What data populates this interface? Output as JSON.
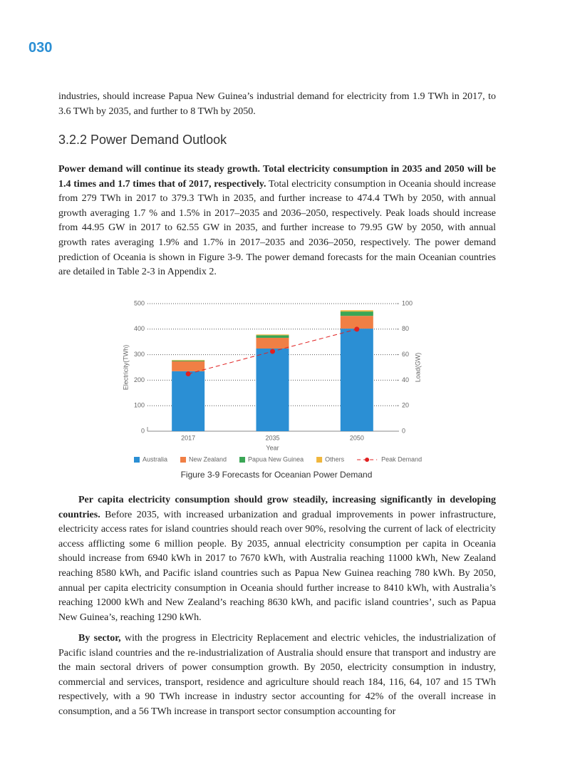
{
  "page_number": "030",
  "paragraphs": [
    {
      "text": "industries, should increase Papua New Guinea’s industrial demand for electricity from 1.9 TWh in 2017, to 3.6 TWh by 2035, and further to 8 TWh by 2050."
    },
    {
      "bold": "Power demand will continue its steady growth. Total electricity consumption in 2035 and 2050 will be 1.4 times and 1.7 times that of 2017, respectively.",
      "text": "Total electricity consumption in Oceania should increase from 279 TWh in 2017 to 379.3 TWh in 2035, and further increase to 474.4 TWh by 2050, with annual growth averaging 1.7 % and 1.5% in 2017–2035 and 2036–2050, respectively. Peak loads should increase from 44.95 GW in 2017 to 62.55 GW in 2035, and further increase to 79.95 GW by 2050, with annual growth rates averaging 1.9% and 1.7% in 2017–2035 and 2036–2050, respectively. The power demand prediction of Oceania is shown in Figure 3-9. The power demand forecasts for the main Oceanian countries are detailed in Table 2-3 in Appendix 2."
    },
    {
      "bold": "Per capita electricity consumption should grow steadily, increasing significantly in developing countries.",
      "text": "Before 2035, with increased urbanization and gradual improvements in power infrastructure, electricity access rates for island countries should reach over 90%, resolving the current of lack of electricity access afflicting some 6 million people. By 2035, annual electricity consumption per capita in Oceania should increase from 6940 kWh in 2017 to 7670 kWh, with Australia reaching 11000 kWh, New Zealand reaching 8580 kWh, and Pacific island countries such as Papua New Guinea reaching 780 kWh. By 2050, annual per capita electricity consumption in Oceania should further increase to 8410 kWh, with Australia’s reaching 12000 kWh and New Zealand’s reaching 8630 kWh, and pacific island countries’, such as Papua New Guinea’s, reaching 1290 kWh."
    },
    {
      "bold": "By sector,",
      "text": "with the progress in Electricity Replacement and electric vehicles, the industrialization of Pacific island countries and the re-industrialization of Australia should ensure that transport and industry are the main sectoral drivers of power consumption growth. By 2050, electricity consumption in industry, commercial and services, transport, residence and agriculture should reach 184, 116, 64, 107 and 15 TWh respectively, with a 90 TWh increase in industry sector accounting for 42% of the overall increase in consumption, and a 56 TWh increase in transport sector consumption accounting for"
    }
  ],
  "heading": "3.2.2 Power Demand Outlook",
  "chart_data": {
    "type": "bar",
    "stacked": true,
    "grid": true,
    "caption": "Figure 3-9 Forecasts for Oceanian Power Demand",
    "x_label": "Year",
    "y_label": "Electricity(TWh)",
    "y2_label": "Load(GW)",
    "categories": [
      "2017",
      "2035",
      "2050"
    ],
    "series": [
      {
        "name": "Australia",
        "color": "#2b8fd4",
        "values": [
          235,
          324,
          402
        ]
      },
      {
        "name": "New Zealand",
        "color": "#f07f45",
        "values": [
          39,
          42,
          50
        ]
      },
      {
        "name": "Papua New Guinea",
        "color": "#3aa655",
        "values": [
          3,
          10,
          17
        ]
      },
      {
        "name": "Others",
        "color": "#f0b63c",
        "values": [
          2,
          3,
          5
        ]
      },
      {
        "name": "Peak Demand",
        "color": "#e02020",
        "type": "line",
        "axis": "y2",
        "values": [
          44.95,
          62.55,
          79.95
        ]
      }
    ],
    "ylim": [
      0,
      500
    ],
    "yticks": [
      0,
      100,
      200,
      300,
      400,
      500
    ],
    "y2lim": [
      0,
      100
    ],
    "y2ticks": [
      0,
      20,
      40,
      60,
      80,
      100
    ]
  }
}
